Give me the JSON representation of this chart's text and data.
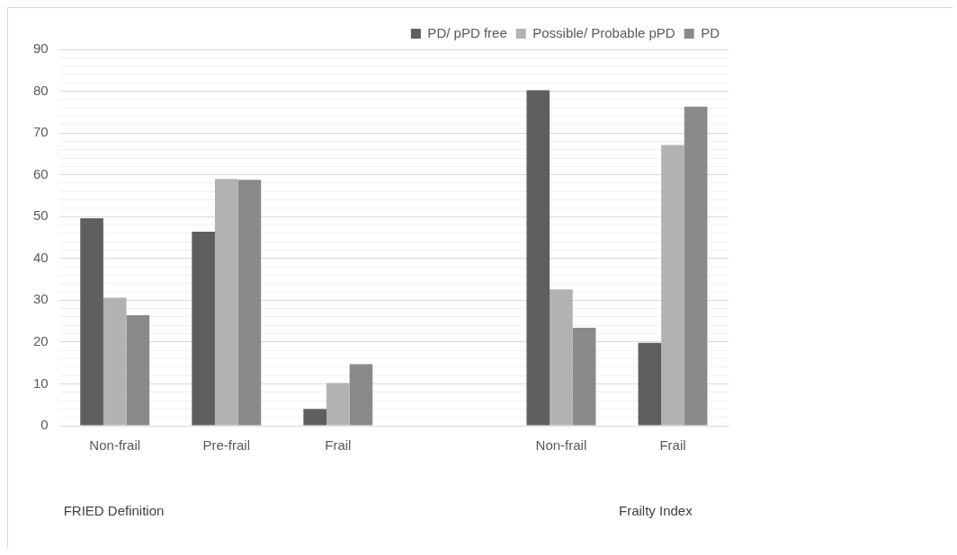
{
  "chart_data": {
    "type": "bar",
    "categories": [
      "Non-frail",
      "Pre-frail",
      "Frail",
      null,
      "Non-frail",
      "Frail"
    ],
    "series": [
      {
        "name": "PD/ pPD free",
        "color": "#5f5f5f",
        "values": [
          49.6,
          46.4,
          4,
          null,
          80.2,
          19.8
        ]
      },
      {
        "name": "Possible/ Probable pPD",
        "color": "#b2b2b2",
        "values": [
          30.6,
          59,
          10.2,
          null,
          32.6,
          67.1
        ]
      },
      {
        "name": "PD",
        "color": "#8a8a8a",
        "values": [
          26.4,
          58.8,
          14.7,
          null,
          23.4,
          76.3
        ]
      }
    ],
    "ylim": [
      0,
      90
    ],
    "yticks": [
      0,
      {
        "value": 2,
        "label": null
      },
      {
        "value": 4,
        "label": null
      },
      {
        "value": 6,
        "label": null
      },
      {
        "value": 8,
        "label": null
      },
      10,
      {
        "value": 12,
        "label": null
      },
      {
        "value": 14,
        "label": null
      },
      {
        "value": 16,
        "label": null
      },
      {
        "value": 18,
        "label": null
      },
      20,
      {
        "value": 22,
        "label": null
      },
      {
        "value": 24,
        "label": null
      },
      {
        "value": 26,
        "label": null
      },
      {
        "value": 28,
        "label": null
      },
      30,
      {
        "value": 32,
        "label": null
      },
      {
        "value": 34,
        "label": null
      },
      {
        "value": 36,
        "label": null
      },
      {
        "value": 38,
        "label": null
      },
      40,
      {
        "value": 42,
        "label": null
      },
      {
        "value": 44,
        "label": null
      },
      {
        "value": 46,
        "label": null
      },
      {
        "value": 48,
        "label": null
      },
      50,
      {
        "value": 52,
        "label": null
      },
      {
        "value": 54,
        "label": null
      },
      {
        "value": 56,
        "label": null
      },
      {
        "value": 58,
        "label": null
      },
      60,
      {
        "value": 62,
        "label": null
      },
      {
        "value": 64,
        "label": null
      },
      {
        "value": 66,
        "label": null
      },
      {
        "value": 68,
        "label": null
      },
      70,
      {
        "value": 72,
        "label": null
      },
      {
        "value": 74,
        "label": null
      },
      {
        "value": 76,
        "label": null
      },
      {
        "value": 78,
        "label": null
      },
      80,
      {
        "value": 82,
        "label": null
      },
      {
        "value": 84,
        "label": null
      },
      {
        "value": 86,
        "label": null
      },
      {
        "value": 88,
        "label": null
      },
      90
    ],
    "grid": "y",
    "legend": "top",
    "annotations": [
      "FRIED Definition",
      "Frailty Index"
    ]
  }
}
